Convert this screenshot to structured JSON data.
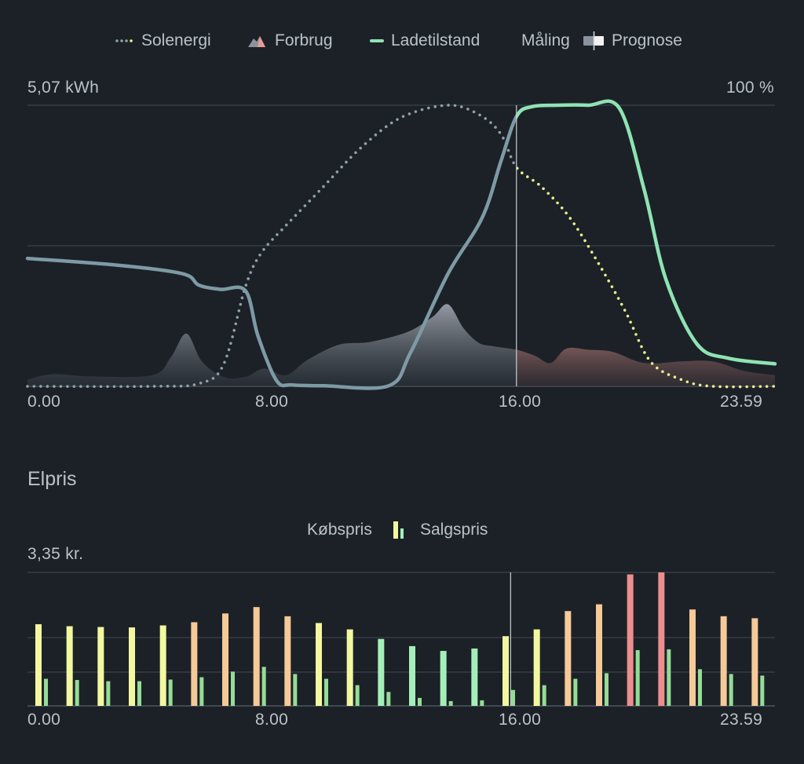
{
  "energy": {
    "legend": {
      "solar": "Solenergi",
      "consumption": "Forbrug",
      "charge": "Ladetilstand",
      "measured": "Måling",
      "forecast": "Prognose"
    },
    "y_left_max": "5,07 kWh",
    "y_right_max": "100 %",
    "x_ticks": [
      "0.00",
      "8.00",
      "16.00",
      "23.59"
    ]
  },
  "price": {
    "heading": "Elpris",
    "legend": {
      "buy": "Købspris",
      "sell": "Salgspris"
    },
    "y_max": "3,35 kr.",
    "x_ticks": [
      "0.00",
      "8.00",
      "16.00",
      "23.59"
    ]
  },
  "colors": {
    "background": "#1c2127",
    "solar_measured": "#8fa1aa",
    "solar_forecast": "#e8ef8c",
    "charge_measured": "#7d9aa5",
    "charge_forecast": "#8fe3b3",
    "consumption_measured": "#8a929c",
    "consumption_forecast": "#e89b96",
    "price_low": "#a4efb9",
    "price_mid": "#f3f7a0",
    "price_high": "#f5c998",
    "price_peak": "#ec8e8e"
  },
  "chart_data": [
    {
      "type": "line",
      "x_unit": "hour",
      "xlim": [
        0,
        24
      ],
      "ylim_left": [
        0,
        5.07
      ],
      "ylim_left_label": "5,07 kWh",
      "ylim_right": [
        0,
        100
      ],
      "ylim_right_label": "100 %",
      "forecast_start": 15.7,
      "x_ticks": [
        "0.00",
        "8.00",
        "16.00",
        "23.59"
      ],
      "series": [
        {
          "name": "Solenergi",
          "style": "dotted",
          "axis": "left",
          "x": [
            0,
            4,
            5.5,
            6.3,
            7,
            7.5,
            8.3,
            9.5,
            10.7,
            12,
            13.5,
            14.5,
            15.2,
            15.7,
            16.5,
            17.4,
            18.3,
            19.2,
            20,
            21,
            22,
            24
          ],
          "values": [
            0,
            0,
            0.05,
            0.4,
            1.8,
            2.4,
            2.9,
            3.6,
            4.3,
            4.85,
            5.07,
            4.9,
            4.55,
            3.95,
            3.6,
            3.05,
            2.25,
            1.35,
            0.45,
            0.12,
            0,
            0
          ]
        },
        {
          "name": "Forbrug",
          "style": "area",
          "axis": "left",
          "x": [
            0,
            0.8,
            2,
            4,
            4.6,
            5.1,
            5.6,
            6.3,
            7,
            7.6,
            8.3,
            9,
            10,
            11,
            12.2,
            13,
            13.5,
            14,
            14.5,
            15,
            15.7,
            16.3,
            16.8,
            17.3,
            18,
            18.8,
            19.8,
            21,
            22,
            23,
            24
          ],
          "values": [
            0.12,
            0.22,
            0.18,
            0.2,
            0.52,
            0.95,
            0.45,
            0.17,
            0.17,
            0.32,
            0.2,
            0.48,
            0.75,
            0.8,
            0.98,
            1.25,
            1.48,
            1.05,
            0.78,
            0.72,
            0.66,
            0.55,
            0.42,
            0.68,
            0.66,
            0.62,
            0.42,
            0.45,
            0.45,
            0.28,
            0.2
          ]
        },
        {
          "name": "Ladetilstand",
          "axis": "right",
          "x": [
            0,
            3,
            5,
            5.5,
            6.2,
            7,
            7.4,
            8,
            8.5,
            9.5,
            11.6,
            12.3,
            13.5,
            14.6,
            15.2,
            15.7,
            16.2,
            17,
            18,
            19,
            19.8,
            20.5,
            21.5,
            22.5,
            24
          ],
          "values": [
            45.5,
            43,
            40,
            36,
            34.5,
            34,
            18,
            2,
            0.5,
            0.2,
            0.2,
            12,
            40,
            60,
            80,
            96,
            99.5,
            100,
            100,
            99,
            70,
            38,
            15,
            10,
            8
          ]
        }
      ]
    },
    {
      "type": "bar",
      "title": "Elpris",
      "x_unit": "hour",
      "ylim": [
        0,
        3.35
      ],
      "ylim_label": "3,35 kr.",
      "x_ticks": [
        "0.00",
        "8.00",
        "16.00",
        "23.59"
      ],
      "current_hour": 15.5,
      "series": [
        {
          "name": "Købspris",
          "values": [
            2.05,
            2.0,
            1.98,
            1.97,
            2.02,
            2.1,
            2.32,
            2.48,
            2.25,
            2.08,
            1.92,
            1.68,
            1.5,
            1.38,
            1.44,
            1.75,
            1.92,
            2.38,
            2.55,
            3.3,
            3.35,
            2.42,
            2.25,
            2.2
          ]
        },
        {
          "name": "Salgspris",
          "values": [
            0.68,
            0.65,
            0.62,
            0.62,
            0.66,
            0.72,
            0.86,
            0.98,
            0.8,
            0.68,
            0.52,
            0.35,
            0.2,
            0.12,
            0.14,
            0.4,
            0.52,
            0.68,
            0.82,
            1.4,
            1.42,
            0.92,
            0.8,
            0.76
          ]
        }
      ]
    }
  ]
}
